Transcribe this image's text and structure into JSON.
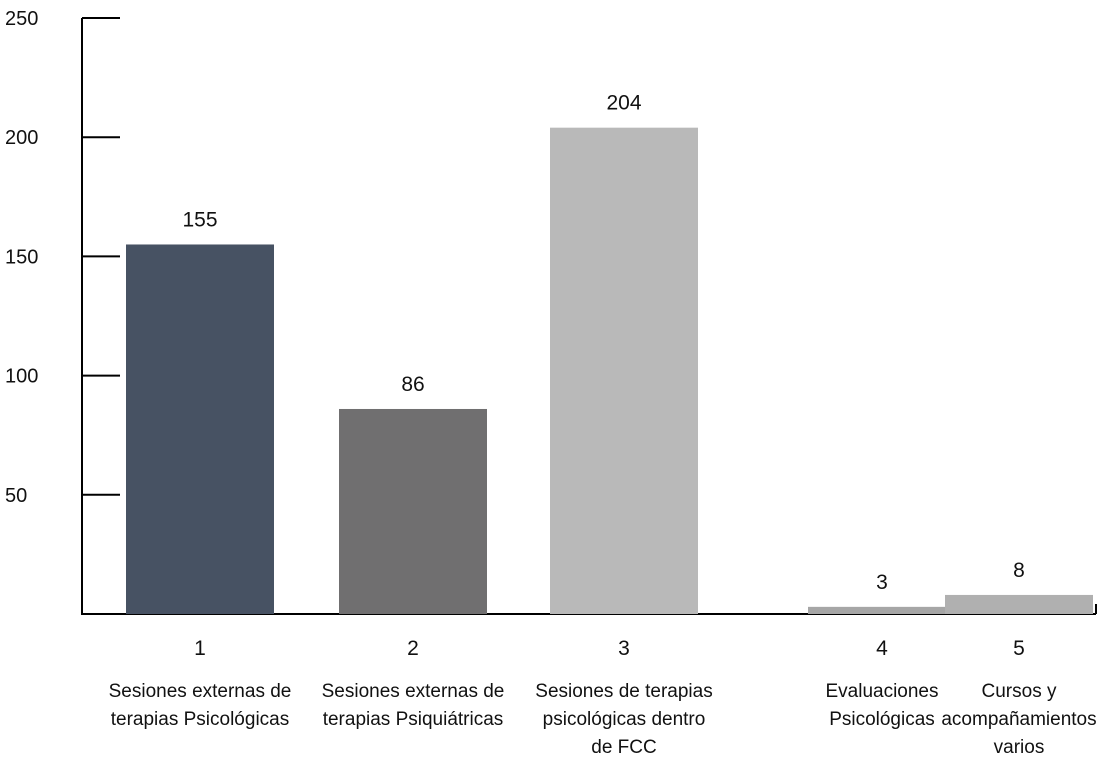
{
  "chart_data": {
    "type": "bar",
    "categories": [
      "1",
      "2",
      "3",
      "4",
      "5"
    ],
    "category_descriptions": [
      [
        "Sesiones externas de",
        "terapias Psicológicas"
      ],
      [
        "Sesiones externas de",
        "terapias Psiquiátricas"
      ],
      [
        "Sesiones de terapias",
        "psicológicas dentro",
        "de FCC"
      ],
      [
        "Evaluaciones",
        "Psicológicas"
      ],
      [
        "Cursos y",
        "acompañamientos",
        "varios"
      ]
    ],
    "values": [
      155,
      86,
      204,
      3,
      8
    ],
    "data_labels": [
      "155",
      "86",
      "204",
      "3",
      "8"
    ],
    "colors": [
      "#475263",
      "#706f70",
      "#b9b9b9",
      "#a6a6a6",
      "#b0b0b0"
    ],
    "yticks": [
      50,
      100,
      150,
      200,
      250
    ],
    "ytick_labels": [
      "50",
      "100",
      "150",
      "200",
      "250"
    ],
    "ylim": [
      0,
      250
    ],
    "title": "",
    "xlabel": "",
    "ylabel": "",
    "grid": false,
    "legend": "none"
  }
}
